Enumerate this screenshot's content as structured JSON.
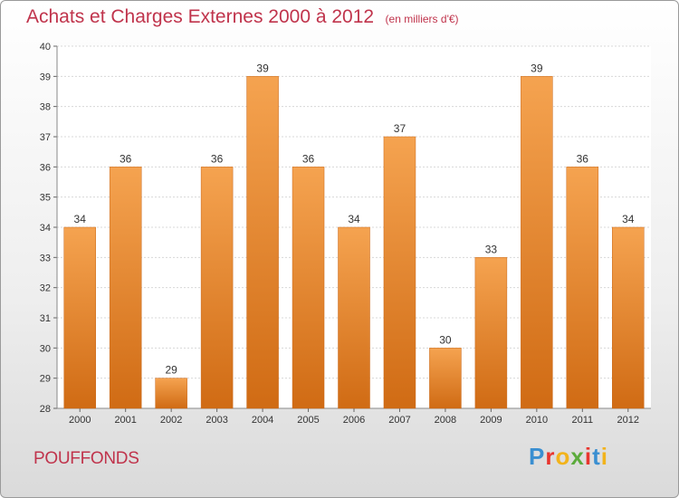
{
  "header": {
    "title": "Achats et Charges Externes 2000 à 2012",
    "subtitle": "(en milliers d'€)"
  },
  "commune": "POUFFONDS",
  "logo": {
    "letters": [
      "P",
      "r",
      "o",
      "x",
      "i",
      "t",
      "i"
    ],
    "colors": [
      "#3a8fd1",
      "#e8352e",
      "#f2b31b",
      "#5cab3c",
      "#e8352e",
      "#3a8fd1",
      "#f2b31b"
    ]
  },
  "chart_data": {
    "type": "bar",
    "title": "Achats et Charges Externes 2000 à 2012",
    "subtitle": "(en milliers d'€)",
    "categories": [
      "2000",
      "2001",
      "2002",
      "2003",
      "2004",
      "2005",
      "2006",
      "2007",
      "2008",
      "2009",
      "2010",
      "2011",
      "2012"
    ],
    "values": [
      34,
      36,
      29,
      36,
      39,
      36,
      34,
      37,
      30,
      33,
      39,
      36,
      34
    ],
    "ylim": [
      28,
      40
    ],
    "yticks": [
      28,
      29,
      30,
      31,
      32,
      33,
      34,
      35,
      36,
      37,
      38,
      39,
      40
    ],
    "grid": true,
    "bar_color_top": "#f5a350",
    "bar_color_bottom": "#d06b14"
  }
}
